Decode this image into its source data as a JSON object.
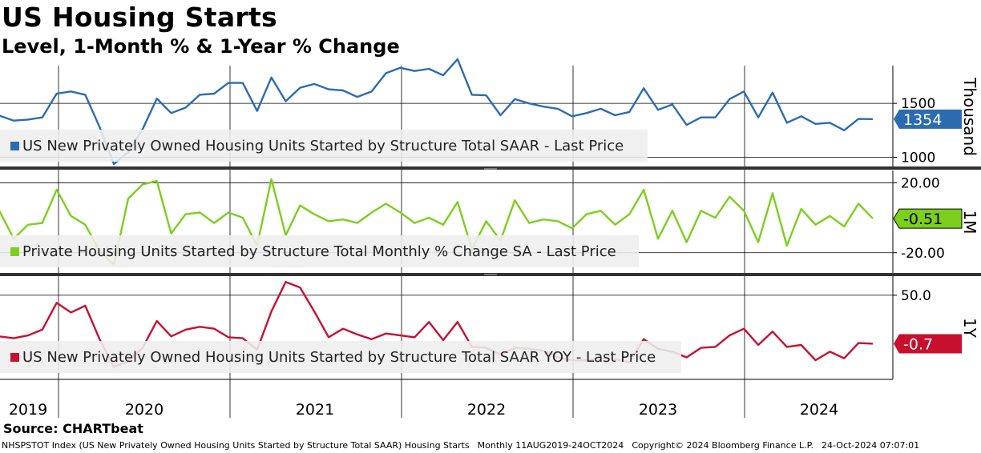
{
  "title": "US Housing Starts",
  "subtitle": "Level, 1-Month % & 1-Year % Change",
  "source": "Source: CHARTbeat",
  "footer": {
    "ticker": "NHSPSTOT Index (US New Privately Owned Housing Units Started by Structure Total SAAR) Housing Starts",
    "period": "Monthly 11AUG2019-24OCT2024",
    "copyright": "Copyright© 2024 Bloomberg Finance L.P.",
    "timestamp": "24-Oct-2024 07:07:01"
  },
  "chart_data": {
    "type": "line",
    "x_labels": [
      "2019",
      "2020",
      "2021",
      "2022",
      "2023",
      "2024"
    ],
    "x_start": "2019-08",
    "x_end": "2024-09",
    "panels": [
      {
        "name": "level",
        "legend": "US New Privately Owned Housing Units Started by Structure Total SAAR - Last Price",
        "axis_title": "Thousand",
        "color": "#2b6cb0",
        "last_value_label": "1354",
        "ylim": [
          900,
          1850
        ],
        "ticks": [
          {
            "value": 1500,
            "label": "1500"
          },
          {
            "value": 1000,
            "label": "1000"
          }
        ],
        "values": [
          1386,
          1340,
          1350,
          1370,
          1590,
          1610,
          1580,
          1280,
          938,
          1047,
          1260,
          1545,
          1410,
          1460,
          1580,
          1590,
          1690,
          1690,
          1430,
          1740,
          1520,
          1645,
          1680,
          1630,
          1620,
          1560,
          1610,
          1780,
          1830,
          1800,
          1820,
          1760,
          1910,
          1580,
          1575,
          1390,
          1540,
          1500,
          1470,
          1450,
          1380,
          1410,
          1450,
          1390,
          1420,
          1640,
          1440,
          1490,
          1300,
          1370,
          1370,
          1540,
          1610,
          1370,
          1600,
          1320,
          1380,
          1310,
          1320,
          1250,
          1356,
          1354
        ]
      },
      {
        "name": "1m",
        "legend": "Private Housing Units Started by Structure Total Monthly % Change SA - Last Price",
        "axis_title": "1M",
        "color": "#7ccf1c",
        "last_value_label": "-0.51",
        "ylim": [
          -32,
          27
        ],
        "ticks": [
          {
            "value": 20,
            "label": "20.00"
          },
          {
            "value": -20,
            "label": "-20.00"
          }
        ],
        "values": [
          4,
          -12,
          -4,
          -3,
          16,
          1,
          -4,
          -19,
          -27,
          11,
          19,
          21,
          -9,
          2,
          3,
          -3,
          3,
          0,
          -16,
          22,
          -10,
          7,
          2,
          -2,
          -1,
          -3,
          3,
          8,
          3,
          -3,
          0,
          -4,
          9,
          -18,
          -2,
          -13,
          10,
          -3,
          -1,
          -2,
          -6,
          2,
          4,
          -4,
          2,
          16,
          -12,
          4,
          -14,
          4,
          0,
          12,
          4,
          -14,
          14,
          -16,
          5,
          -4,
          1,
          -5,
          8,
          -0.51
        ]
      },
      {
        "name": "1y",
        "legend": "US New Privately Owned Housing Units Started by Structure Total SAAR YOY - Last Price",
        "axis_title": "1Y",
        "color": "#c8102e",
        "last_value_label": "-0.7",
        "ylim": [
          -38,
          70
        ],
        "ticks": [
          {
            "value": 50,
            "label": "50.0"
          }
        ],
        "values": [
          7,
          5,
          8,
          14,
          42,
          32,
          39,
          4,
          -25,
          -19,
          -5,
          23,
          7,
          14,
          17,
          15,
          6,
          5,
          -7,
          33,
          64,
          58,
          33,
          6,
          15,
          9,
          4,
          10,
          8,
          6,
          22,
          3,
          22,
          -4,
          -5,
          -12,
          -5,
          -6,
          -8,
          -15,
          -18,
          -18,
          -16,
          -17,
          -20,
          4,
          -6,
          -9,
          -15,
          -5,
          -4,
          8,
          15,
          -2,
          12,
          -4,
          -2,
          -18,
          -9,
          -16,
          0,
          -0.7
        ]
      }
    ]
  }
}
